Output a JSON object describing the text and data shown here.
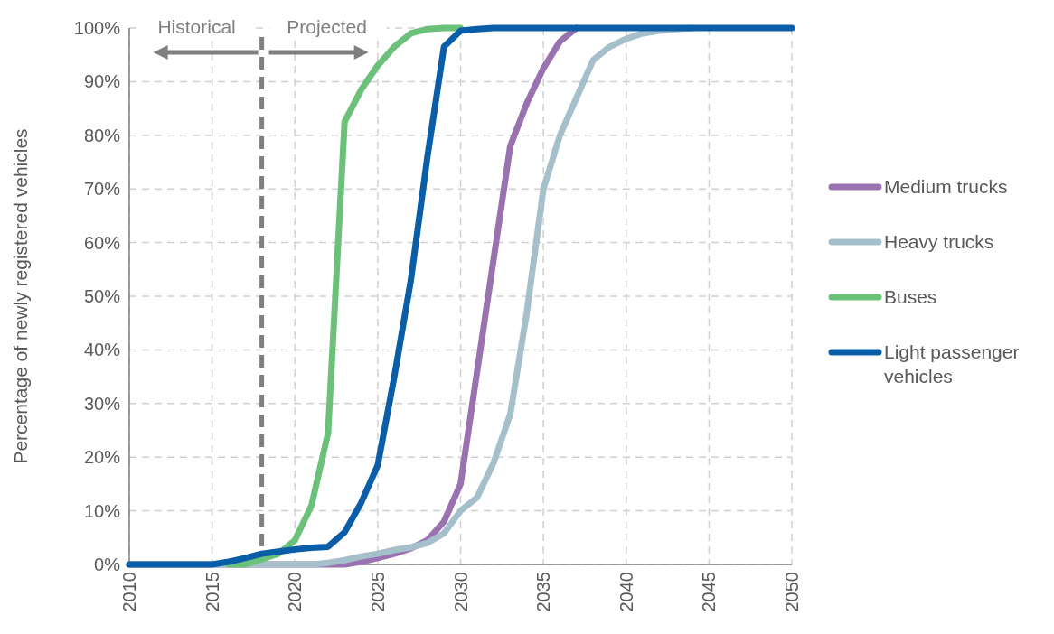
{
  "chart_data": {
    "type": "line",
    "ylabel": "Percentage of newly registered vehicles",
    "x": [
      2010,
      2011,
      2012,
      2013,
      2014,
      2015,
      2016,
      2017,
      2018,
      2019,
      2020,
      2021,
      2022,
      2023,
      2024,
      2025,
      2026,
      2027,
      2028,
      2029,
      2030,
      2031,
      2032,
      2033,
      2034,
      2035,
      2036,
      2037,
      2038,
      2039,
      2040,
      2041,
      2042,
      2043,
      2044,
      2045,
      2046,
      2047,
      2048,
      2049,
      2050
    ],
    "series": [
      {
        "name": "Medium trucks",
        "color": "#9b72b0",
        "values": [
          0,
          0,
          0,
          0,
          0,
          0,
          0,
          0,
          0,
          0,
          0,
          0,
          0,
          0,
          0.5,
          1.2,
          2,
          3,
          4.5,
          8,
          15,
          36,
          57,
          78,
          86,
          92.5,
          97.5,
          100,
          null,
          null,
          null,
          null,
          null,
          null,
          null,
          null,
          null,
          null,
          null,
          null,
          null
        ]
      },
      {
        "name": "Heavy trucks",
        "color": "#a5bfcb",
        "values": [
          0,
          0,
          0,
          0,
          0,
          0,
          0,
          0,
          0,
          0,
          0,
          0,
          0.3,
          0.8,
          1.5,
          2,
          2.7,
          3.2,
          4,
          5.8,
          10,
          12.5,
          19,
          28,
          47,
          70,
          80,
          87,
          94,
          96.5,
          98,
          99,
          99.5,
          99.8,
          100,
          null,
          null,
          null,
          null,
          null,
          null
        ]
      },
      {
        "name": "Buses",
        "color": "#6cc17a",
        "values": [
          null,
          null,
          null,
          null,
          null,
          null,
          0,
          0,
          1,
          2,
          4.5,
          11,
          24.5,
          82.5,
          88.5,
          93,
          96.5,
          99,
          99.8,
          100,
          100,
          null,
          null,
          null,
          null,
          null,
          null,
          null,
          null,
          null,
          null,
          null,
          null,
          null,
          null,
          null,
          null,
          null,
          null,
          null,
          null
        ]
      },
      {
        "name": "Light passenger vehicles",
        "color": "#0a5ea8",
        "values": [
          0,
          0,
          0,
          0,
          0,
          0,
          0.5,
          1.2,
          2,
          2.4,
          2.8,
          3.1,
          3.3,
          6,
          11.5,
          18.5,
          35,
          53,
          76,
          96.5,
          99.5,
          99.8,
          100,
          100,
          100,
          100,
          100,
          100,
          100,
          100,
          100,
          100,
          100,
          100,
          100,
          100,
          100,
          100,
          100,
          100,
          100
        ]
      }
    ],
    "xlim": [
      2010,
      2050
    ],
    "xticks": [
      2010,
      2015,
      2020,
      2025,
      2030,
      2035,
      2040,
      2045,
      2050
    ],
    "ylim": [
      0,
      100
    ],
    "yticks": [
      {
        "value": 0,
        "label": "0%"
      },
      {
        "value": 10,
        "label": "10%"
      },
      {
        "value": 20,
        "label": "20%"
      },
      {
        "value": 30,
        "label": "30%"
      },
      {
        "value": 40,
        "label": "40%"
      },
      {
        "value": 50,
        "label": "50%"
      },
      {
        "value": 60,
        "label": "60%"
      },
      {
        "value": 70,
        "label": "70%"
      },
      {
        "value": 80,
        "label": "80%"
      },
      {
        "value": 90,
        "label": "90%"
      },
      {
        "value": 100,
        "label": "100%"
      }
    ],
    "grid": true,
    "legend": "right",
    "marker": "none",
    "line_style": "solid",
    "ref_lines": [
      {
        "axis": "x",
        "value": 2018,
        "color": "#7f7f7f",
        "line_style": "dashed"
      }
    ],
    "annotations": [
      "Historical",
      "Projected"
    ]
  }
}
